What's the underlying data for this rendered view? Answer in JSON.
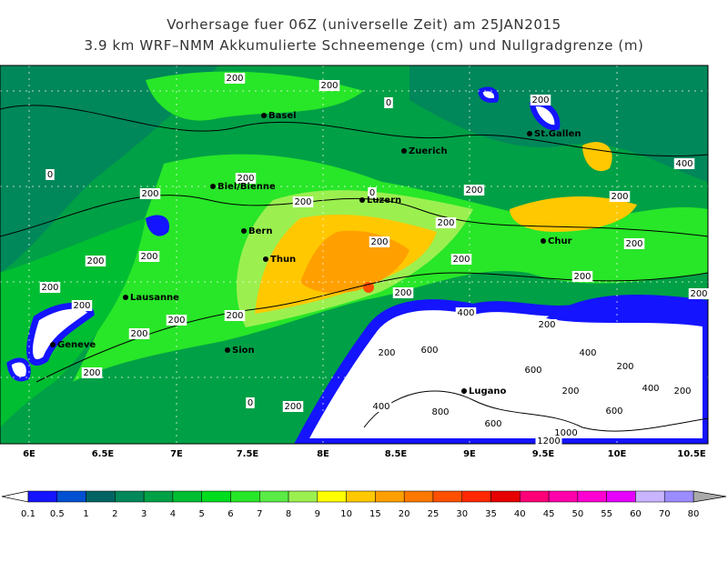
{
  "title": {
    "line1": "Vorhersage fuer 06Z (universelle Zeit) am 25JAN2015",
    "line2": "3.9 km WRF–NMM Akkumulierte Schneemenge (cm) und Nullgradgrenze (m)"
  },
  "map": {
    "cities": [
      "Basel",
      "Zuerich",
      "St.Gallen",
      "Biel/Bienne",
      "Luzern",
      "Bern",
      "Chur",
      "Thun",
      "Lausanne",
      "Geneve",
      "Sion",
      "Lugano"
    ],
    "contour_labels": [
      "200",
      "200",
      "0",
      "200",
      "400",
      "0",
      "200",
      "200",
      "200",
      "0",
      "200",
      "200",
      "200",
      "200",
      "200",
      "200",
      "200",
      "200",
      "200",
      "200",
      "200",
      "200",
      "200",
      "200",
      "400",
      "200",
      "200",
      "200",
      "200",
      "400",
      "200",
      "600",
      "600",
      "200",
      "400",
      "200",
      "200",
      "400",
      "200",
      "0",
      "800",
      "600",
      "600",
      "1000",
      "1200"
    ],
    "lon_labels": [
      "6E",
      "6.5E",
      "7E",
      "7.5E",
      "8E",
      "8.5E",
      "9E",
      "9.5E",
      "10E",
      "10.5E"
    ]
  },
  "colorbar": {
    "levels": [
      0.1,
      0.5,
      1,
      2,
      3,
      4,
      5,
      6,
      7,
      8,
      9,
      10,
      15,
      20,
      25,
      30,
      35,
      40,
      45,
      50,
      55,
      60,
      70,
      80
    ],
    "colors": [
      "#1414ff",
      "#0050d2",
      "#006464",
      "#00875a",
      "#00a046",
      "#00be32",
      "#00dc1e",
      "#28e628",
      "#5aeb46",
      "#9bf050",
      "#ffff00",
      "#ffc800",
      "#ffa000",
      "#ff7800",
      "#ff5000",
      "#ff2800",
      "#e60000",
      "#ff0078",
      "#ff00aa",
      "#ff00d2",
      "#e600ff",
      "#c8b4ff",
      "#9b8cff"
    ]
  }
}
